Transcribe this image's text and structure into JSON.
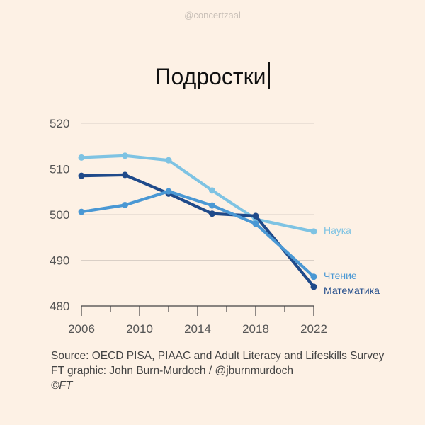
{
  "watermark": "@concertzaal",
  "title": "Подростки",
  "source_lines": [
    "Source: OECD PISA, PIAAC and Adult Literacy and Lifeskills Survey",
    "FT graphic: John Burn-Murdoch / @jburnmurdoch",
    "©FT"
  ],
  "chart_data": {
    "type": "line",
    "title": "Подростки",
    "xlabel": "",
    "ylabel": "",
    "xlim": [
      2006,
      2022
    ],
    "ylim": [
      480,
      520
    ],
    "x_ticks": [
      2006,
      2010,
      2014,
      2018,
      2022
    ],
    "y_ticks": [
      480,
      490,
      500,
      510,
      520
    ],
    "grid": "horizontal",
    "x": [
      2006,
      2009,
      2012,
      2015,
      2018,
      2022
    ],
    "series": [
      {
        "name": "Наука",
        "color": "#7ec3e3",
        "values": [
          512.5,
          512.9,
          511.9,
          505.3,
          499.0,
          496.3
        ]
      },
      {
        "name": "Математика",
        "color": "#1f4a8a",
        "values": [
          508.5,
          508.7,
          504.6,
          500.2,
          499.7,
          484.2
        ]
      },
      {
        "name": "Чтение",
        "color": "#4a98d4",
        "values": [
          500.6,
          502.1,
          505.1,
          502.0,
          498.0,
          486.4
        ]
      }
    ]
  }
}
